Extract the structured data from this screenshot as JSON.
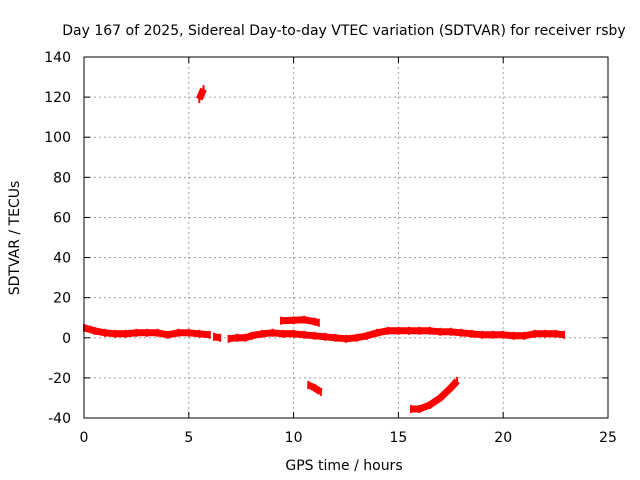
{
  "chart_data": {
    "type": "scatter",
    "title": "Day 167 of 2025, Sidereal Day-to-day VTEC variation (SDTVAR) for receiver rsby",
    "xlabel": "GPS time / hours",
    "ylabel": "SDTVAR / TECUs",
    "xlim": [
      0,
      25
    ],
    "ylim": [
      -40,
      140
    ],
    "xticks": [
      0,
      5,
      10,
      15,
      20,
      25
    ],
    "yticks": [
      -40,
      -20,
      0,
      20,
      40,
      60,
      80,
      100,
      120,
      140
    ],
    "grid": true,
    "legend": "none",
    "series": [
      {
        "color": "#ff0000",
        "segments": [
          [
            [
              0.0,
              5.0
            ],
            [
              0.5,
              3.5
            ],
            [
              1.0,
              2.5
            ],
            [
              1.5,
              2.0
            ],
            [
              2.0,
              2.0
            ],
            [
              2.5,
              2.5
            ],
            [
              3.0,
              2.5
            ],
            [
              3.5,
              2.5
            ],
            [
              4.0,
              1.5
            ],
            [
              4.5,
              2.5
            ],
            [
              5.0,
              2.5
            ],
            [
              5.5,
              2.0
            ],
            [
              6.0,
              1.5
            ]
          ],
          [
            [
              6.2,
              0.5
            ],
            [
              6.5,
              0.0
            ]
          ],
          [
            [
              6.9,
              -0.5
            ],
            [
              7.3,
              0.0
            ],
            [
              7.7,
              0.0
            ],
            [
              8.0,
              1.0
            ],
            [
              8.5,
              2.0
            ],
            [
              9.0,
              2.5
            ],
            [
              9.5,
              2.0
            ],
            [
              10.0,
              2.0
            ],
            [
              10.5,
              1.5
            ],
            [
              11.0,
              1.0
            ],
            [
              11.5,
              0.5
            ],
            [
              12.0,
              0.0
            ],
            [
              12.5,
              -0.5
            ],
            [
              13.0,
              0.0
            ],
            [
              13.5,
              1.0
            ],
            [
              14.0,
              2.5
            ],
            [
              14.5,
              3.5
            ],
            [
              15.0,
              3.5
            ],
            [
              15.5,
              3.5
            ],
            [
              16.0,
              3.5
            ],
            [
              16.5,
              3.5
            ],
            [
              17.0,
              3.0
            ],
            [
              17.5,
              3.0
            ],
            [
              18.0,
              2.5
            ],
            [
              18.5,
              2.0
            ],
            [
              19.0,
              1.5
            ],
            [
              19.5,
              1.5
            ],
            [
              20.0,
              1.5
            ],
            [
              20.5,
              1.0
            ],
            [
              21.0,
              1.0
            ],
            [
              21.5,
              2.0
            ],
            [
              22.0,
              2.0
            ],
            [
              22.5,
              2.0
            ],
            [
              22.9,
              1.5
            ]
          ],
          [
            [
              5.5,
              119.0
            ],
            [
              5.6,
              121.5
            ],
            [
              5.7,
              124.0
            ]
          ],
          [
            [
              9.4,
              8.5
            ],
            [
              10.0,
              8.7
            ],
            [
              10.5,
              9.0
            ],
            [
              11.0,
              8.0
            ],
            [
              11.2,
              7.5
            ]
          ],
          [
            [
              10.7,
              -23.5
            ],
            [
              11.0,
              -25.0
            ],
            [
              11.3,
              -27.0
            ]
          ],
          [
            [
              15.6,
              -35.5
            ],
            [
              16.0,
              -35.5
            ],
            [
              16.5,
              -33.5
            ],
            [
              17.0,
              -30.0
            ],
            [
              17.5,
              -25.0
            ],
            [
              17.8,
              -21.5
            ]
          ]
        ]
      }
    ]
  }
}
